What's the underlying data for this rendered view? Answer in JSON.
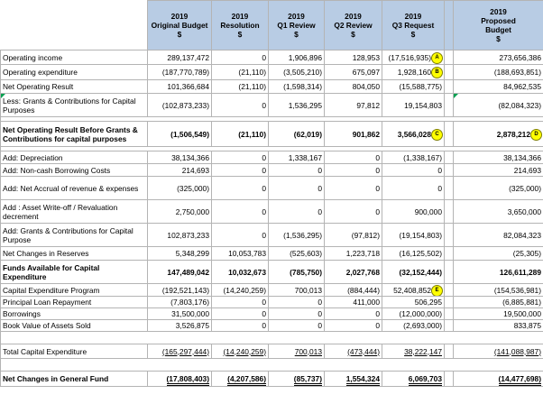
{
  "headers": {
    "original_budget": [
      "2019",
      "Original Budget",
      "$"
    ],
    "resolution": [
      "2019",
      "Resolution",
      "$"
    ],
    "q1_review": [
      "2019",
      "Q1 Review",
      "$"
    ],
    "q2_review": [
      "2019",
      "Q2 Review",
      "$"
    ],
    "q3_request": [
      "2019",
      "Q3 Request",
      "$"
    ],
    "proposed_budget": [
      "2019",
      "Proposed",
      "Budget",
      "$"
    ]
  },
  "rows": {
    "r01": {
      "label": "Operating income",
      "values": [
        "289,137,472",
        "0",
        "1,906,896",
        "128,953",
        "(17,516,935)",
        "273,656,386"
      ]
    },
    "r02": {
      "label": "Operating expenditure",
      "values": [
        "(187,770,789)",
        "(21,110)",
        "(3,505,210)",
        "675,097",
        "1,928,160",
        "(188,693,851)"
      ]
    },
    "r03": {
      "label": "Net Operating Result",
      "values": [
        "101,366,684",
        "(21,110)",
        "(1,598,314)",
        "804,050",
        "(15,588,775)",
        "84,962,535"
      ]
    },
    "r04": {
      "label": "Less: Grants & Contributions for Capital Purposes",
      "values": [
        "(102,873,233)",
        "0",
        "1,536,295",
        "97,812",
        "19,154,803",
        "(82,084,323)"
      ]
    },
    "r05": {
      "label": "Net Operating Result Before Grants & Contributions for capital purposes",
      "values": [
        "(1,506,549)",
        "(21,110)",
        "(62,019)",
        "901,862",
        "3,566,028",
        "2,878,212"
      ]
    },
    "r06": {
      "label": "Add: Depreciation",
      "values": [
        "38,134,366",
        "0",
        "1,338,167",
        "0",
        "(1,338,167)",
        "38,134,366"
      ]
    },
    "r07": {
      "label": "Add: Non-cash Borrowing Costs",
      "values": [
        "214,693",
        "0",
        "0",
        "0",
        "0",
        "214,693"
      ]
    },
    "r08": {
      "label": "Add: Net Accrual of revenue & expenses",
      "values": [
        "(325,000)",
        "0",
        "0",
        "0",
        "0",
        "(325,000)"
      ]
    },
    "r09": {
      "label": "Add : Asset Write-off / Revaluation decrement",
      "values": [
        "2,750,000",
        "0",
        "0",
        "0",
        "900,000",
        "3,650,000"
      ]
    },
    "r10": {
      "label": "Add: Grants & Contributions for Capital Purpose",
      "values": [
        "102,873,233",
        "0",
        "(1,536,295)",
        "(97,812)",
        "(19,154,803)",
        "82,084,323"
      ]
    },
    "r11": {
      "label": "Net Changes in Reserves",
      "values": [
        "5,348,299",
        "10,053,783",
        "(525,603)",
        "1,223,718",
        "(16,125,502)",
        "(25,305)"
      ]
    },
    "r12": {
      "label": "Funds Available for Capital Expenditure",
      "values": [
        "147,489,042",
        "10,032,673",
        "(785,750)",
        "2,027,768",
        "(32,152,444)",
        "126,611,289"
      ]
    },
    "r13": {
      "label": "Capital Expenditure Program",
      "values": [
        "(192,521,143)",
        "(14,240,259)",
        "700,013",
        "(884,444)",
        "52,408,852",
        "(154,536,981)"
      ]
    },
    "r14": {
      "label": "Principal Loan Repayment",
      "values": [
        "(7,803,176)",
        "0",
        "0",
        "411,000",
        "506,295",
        "(6,885,881)"
      ]
    },
    "r15": {
      "label": "Borrowings",
      "values": [
        "31,500,000",
        "0",
        "0",
        "0",
        "(12,000,000)",
        "19,500,000"
      ]
    },
    "r16": {
      "label": "Book Value of Assets Sold",
      "values": [
        "3,526,875",
        "0",
        "0",
        "0",
        "(2,693,000)",
        "833,875"
      ]
    },
    "r17": {
      "label": "Total Capital Expenditure",
      "values": [
        "(165,297,444)",
        "(14,240,259)",
        "700,013",
        "(473,444)",
        "38,222,147",
        "(141,088,987)"
      ]
    },
    "r18": {
      "label": "Net Changes in General Fund",
      "values": [
        "(17,808,403)",
        "(4,207,586)",
        "(85,737)",
        "1,554,324",
        "6,069,703",
        "(14,477,698)"
      ]
    }
  },
  "markers": {
    "a": "A",
    "b": "B",
    "c": "C",
    "d": "D",
    "e": "E"
  },
  "colors": {
    "header_bg": "#b8cce4",
    "marker_bg": "#ffff00",
    "indicator": "#00a050"
  }
}
